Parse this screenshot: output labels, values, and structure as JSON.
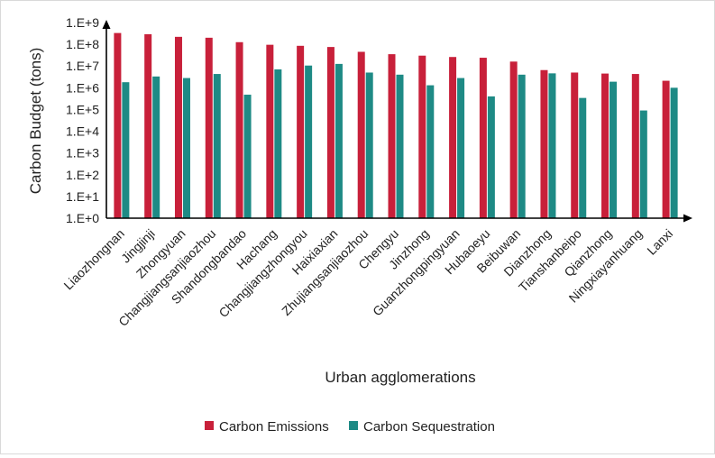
{
  "chart_data": {
    "type": "bar",
    "title": "",
    "xlabel": "Urban agglomerations",
    "ylabel": "Carbon Budget (tons)",
    "yscale": "log",
    "ylim": [
      1,
      1000000000
    ],
    "yticks": [
      "1.E+0",
      "1.E+1",
      "1.E+2",
      "1.E+3",
      "1.E+4",
      "1.E+5",
      "1.E+6",
      "1.E+7",
      "1.E+8",
      "1.E+9"
    ],
    "legend_position": "bottom",
    "grid": false,
    "categories": [
      "Liaozhongnan",
      "Jingjinji",
      "Zhongyuan",
      "Changjiangsanjiaozhou",
      "Shandongbandao",
      "Hachang",
      "Changjiangzhongyou",
      "Haixiaxian",
      "Zhujiangsanjiaozhou",
      "Chengyu",
      "Jinzhong",
      "Guanzhongpingyuan",
      "Hubaoeyu",
      "Beibuwan",
      "Dianzhong",
      "Tianshanbeipo",
      "Qianzhong",
      "Ningxiayanhuang",
      "Lanxi"
    ],
    "series": [
      {
        "name": "Carbon Emissions",
        "color": "#c8203a",
        "values": [
          330000000,
          290000000,
          220000000,
          200000000,
          125000000,
          95000000,
          85000000,
          75000000,
          45000000,
          35000000,
          30000000,
          26000000,
          24000000,
          16000000,
          6500000,
          5000000,
          4500000,
          4300000,
          2100000
        ]
      },
      {
        "name": "Carbon Sequestration",
        "color": "#1e8a85",
        "values": [
          1800000,
          3300000,
          2800000,
          4300000,
          480000,
          7000000,
          10500000,
          12500000,
          5000000,
          4000000,
          1300000,
          2800000,
          400000,
          4000000,
          4600000,
          340000,
          1900000,
          90000,
          1000000
        ]
      }
    ]
  }
}
